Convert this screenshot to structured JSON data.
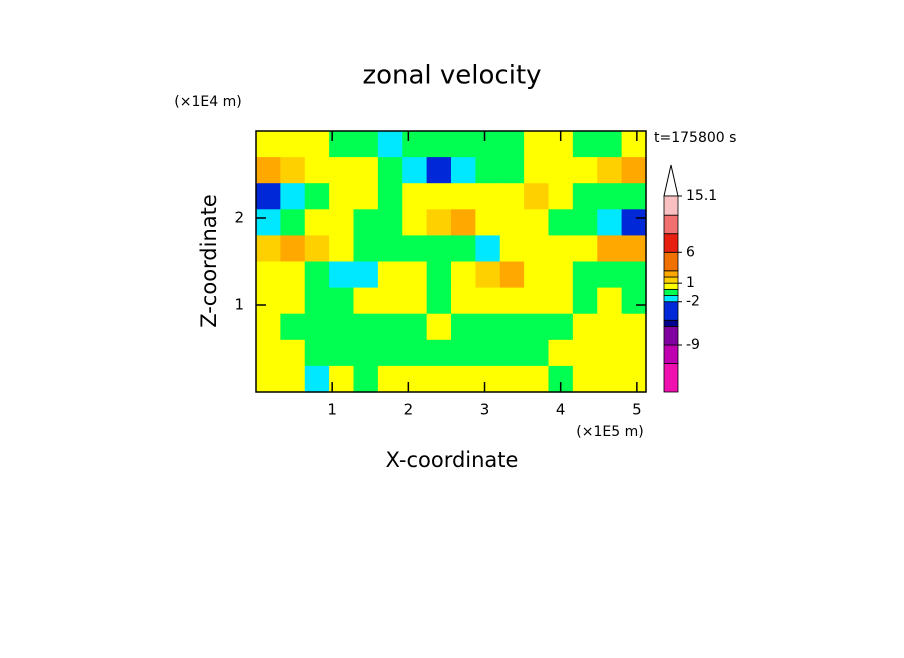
{
  "chart_data": {
    "type": "contour",
    "title": "zonal velocity",
    "x_label": "X-coordinate",
    "y_label": "Z-coordinate",
    "x_scale_label": "(×1E5 m)",
    "y_scale_label": "(×1E4 m)",
    "annotation": "t=175800 s",
    "xlim": [
      0,
      5.12
    ],
    "ylim": [
      0,
      3
    ],
    "xticks": [
      1,
      2,
      3,
      4,
      5
    ],
    "yticks": [
      1,
      2
    ],
    "z": [
      [
        0.5,
        0.5,
        0.5,
        -0.5,
        -0.5,
        -1.5,
        -0.5,
        -0.5,
        -0.5,
        -0.5,
        -0.5,
        0.5,
        0.5,
        -0.5,
        -0.5,
        0.5
      ],
      [
        2.5,
        1.5,
        0.5,
        0.5,
        0.5,
        -0.5,
        -1.5,
        -3,
        -1.5,
        -0.5,
        -0.5,
        0.5,
        0.5,
        0.5,
        1.5,
        2.5
      ],
      [
        -3,
        -1.5,
        -0.5,
        0.5,
        0.5,
        -0.5,
        0.5,
        0.5,
        0.5,
        0.5,
        0.5,
        1.5,
        0.5,
        -0.5,
        -0.5,
        -0.5
      ],
      [
        -1.5,
        -0.5,
        0.5,
        0.5,
        -0.5,
        -0.5,
        0.5,
        1.5,
        2.5,
        0.5,
        0.5,
        0.5,
        -0.5,
        -0.5,
        -1.5,
        -3
      ],
      [
        1.5,
        2.5,
        1.5,
        0.5,
        -0.5,
        -0.5,
        -0.5,
        -0.5,
        -0.5,
        -1.5,
        0.5,
        0.5,
        0.5,
        0.5,
        2.5,
        2.5
      ],
      [
        0.5,
        0.5,
        -0.5,
        -1.5,
        -1.5,
        0.5,
        0.5,
        -0.5,
        0.5,
        1.5,
        2.5,
        0.5,
        0.5,
        -0.5,
        -0.5,
        -0.5
      ],
      [
        0.5,
        0.5,
        -0.5,
        -0.5,
        0.5,
        0.5,
        0.5,
        -0.5,
        0.5,
        0.5,
        0.5,
        0.5,
        0.5,
        -0.5,
        0.5,
        -0.5
      ],
      [
        0.5,
        -0.5,
        -0.5,
        -0.5,
        -0.5,
        -0.5,
        -0.5,
        0.5,
        -0.5,
        -0.5,
        -0.5,
        -0.5,
        -0.5,
        0.5,
        0.5,
        0.5
      ],
      [
        0.5,
        0.5,
        -0.5,
        -0.5,
        -0.5,
        -0.5,
        -0.5,
        -0.5,
        -0.5,
        -0.5,
        -0.5,
        -0.5,
        0.5,
        0.5,
        0.5,
        0.5
      ],
      [
        0.5,
        0.5,
        -1.5,
        0.5,
        -0.5,
        0.5,
        0.5,
        0.5,
        0.5,
        0.5,
        0.5,
        0.5,
        -0.5,
        0.5,
        0.5,
        0.5
      ]
    ],
    "colorbar": {
      "bounds": [
        -16.6,
        -12,
        -9,
        -6,
        -5,
        -2,
        -1,
        0,
        1,
        2,
        3,
        6,
        9,
        12,
        15.1
      ],
      "colors": [
        "#f010b0",
        "#c000b0",
        "#8000a0",
        "#000090",
        "#0028d8",
        "#00e8ff",
        "#00ff50",
        "#ffff00",
        "#ffd000",
        "#ffa800",
        "#f07000",
        "#e82010",
        "#f07070",
        "#f8c0c0"
      ],
      "ticks": [
        15.1,
        6,
        1,
        -2,
        -9
      ]
    }
  }
}
